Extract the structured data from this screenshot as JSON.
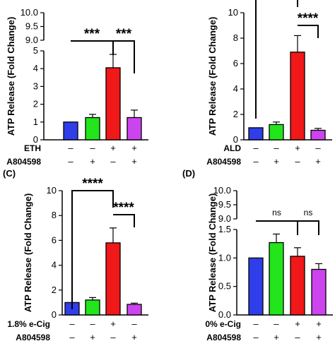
{
  "colors": [
    "#2f3ee8",
    "#22e51c",
    "#f01818",
    "#cc44ee"
  ],
  "chart_data": [
    {
      "panel": "",
      "type": "bar",
      "ylabel": "ATP Release (Fold Change)",
      "broken_axis": true,
      "ylim_lower": [
        0,
        5
      ],
      "yticks_lower": [
        0,
        1,
        2,
        3,
        4,
        5
      ],
      "ylim_upper": [
        9.0,
        10.0
      ],
      "yticks_upper": [
        "9.0",
        "9.5",
        "10.0"
      ],
      "values": [
        1.0,
        1.25,
        4.05,
        1.25
      ],
      "errors": [
        0.0,
        0.18,
        0.75,
        0.42
      ],
      "rows": [
        {
          "label": "ETH",
          "symbols": [
            "–",
            "–",
            "+",
            "+"
          ]
        },
        {
          "label": "A804598",
          "symbols": [
            "–",
            "+",
            "–",
            "+"
          ]
        }
      ],
      "significance": [
        {
          "from": 0,
          "to": 2,
          "label": "***"
        },
        {
          "from": 2,
          "to": 3,
          "label": "***"
        }
      ]
    },
    {
      "panel": "",
      "type": "bar",
      "ylabel": "ATP Release (Fold Change)",
      "broken_axis": false,
      "ylim": [
        0,
        10
      ],
      "yticks": [
        0,
        2,
        4,
        6,
        8,
        10
      ],
      "values": [
        0.95,
        1.2,
        6.9,
        0.75
      ],
      "errors": [
        0.0,
        0.2,
        1.3,
        0.15
      ],
      "rows": [
        {
          "label": "ALD",
          "symbols": [
            "–",
            "–",
            "+",
            "–"
          ]
        },
        {
          "label": "A804598",
          "symbols": [
            "–",
            "+",
            "–",
            "+"
          ]
        }
      ],
      "significance": [
        {
          "from": 0,
          "to": 2,
          "label": ""
        },
        {
          "from": 2,
          "to": 3,
          "label": "****"
        }
      ]
    },
    {
      "panel": "(C)",
      "type": "bar",
      "ylabel": "ATP Release (Fold Change)",
      "broken_axis": false,
      "ylim": [
        0,
        10
      ],
      "yticks": [
        0,
        2,
        4,
        6,
        8,
        10
      ],
      "values": [
        1.0,
        1.2,
        5.8,
        0.85
      ],
      "errors": [
        0.0,
        0.2,
        1.2,
        0.1
      ],
      "rows": [
        {
          "label": "1.8% e-Cig",
          "symbols": [
            "–",
            "–",
            "+",
            "–"
          ]
        },
        {
          "label": "A804598",
          "symbols": [
            "–",
            "+",
            "–",
            "+"
          ]
        }
      ],
      "significance": [
        {
          "from": 0,
          "to": 2,
          "label": "****"
        },
        {
          "from": 2,
          "to": 3,
          "label": "****"
        }
      ]
    },
    {
      "panel": "(D)",
      "type": "bar",
      "ylabel": "ATP Release (Fold Change)",
      "broken_axis": true,
      "ylim_lower": [
        0,
        1.5
      ],
      "yticks_lower": [
        "0.0",
        "0.5",
        "1.0",
        "1.5"
      ],
      "ylim_upper": [
        9.0,
        10.0
      ],
      "yticks_upper": [
        "9.0",
        "9.5",
        "10.0"
      ],
      "values": [
        1.0,
        1.27,
        1.03,
        0.8
      ],
      "errors": [
        0.0,
        0.15,
        0.15,
        0.1
      ],
      "rows": [
        {
          "label": "0% e-Cig",
          "symbols": [
            "–",
            "–",
            "+",
            "+"
          ]
        },
        {
          "label": "A804598",
          "symbols": [
            "–",
            "+",
            "–",
            "+"
          ]
        }
      ],
      "significance": [
        {
          "from": 0,
          "to": 2,
          "label": "ns"
        },
        {
          "from": 2,
          "to": 3,
          "label": "ns"
        }
      ]
    }
  ]
}
